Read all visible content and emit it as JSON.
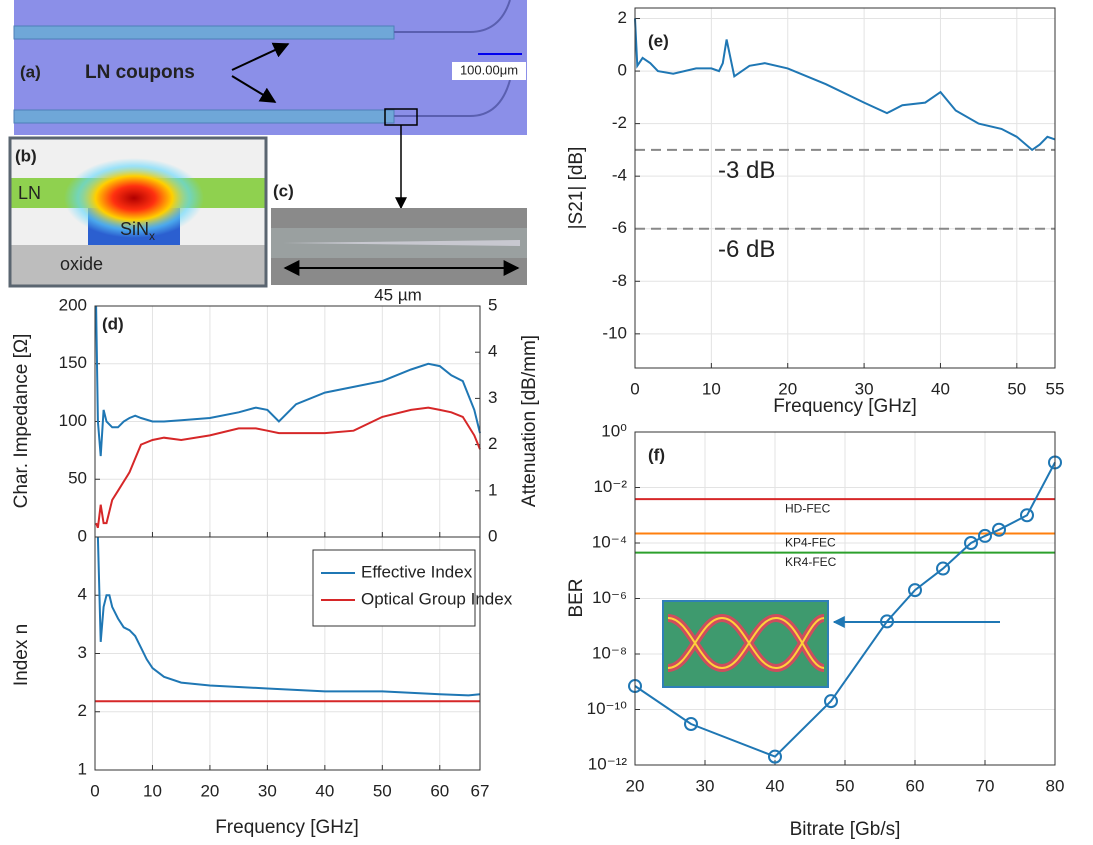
{
  "panels": {
    "a": {
      "label": "(a)",
      "text": "LN coupons",
      "scale_bar": "100.00μm"
    },
    "b": {
      "label": "(b)",
      "top": "LN",
      "core": "SiN",
      "core_sub": "x",
      "bottom": "oxide"
    },
    "c": {
      "label": "(c)",
      "length": "45 µm"
    }
  },
  "chart_data": [
    {
      "type": "line",
      "panel_label": "(d)",
      "ylabel": "Char. Impedance [Ω]",
      "y2label": "Attenuation [dB/mm]",
      "xlim": [
        0,
        67
      ],
      "xticks": [
        0,
        10,
        20,
        30,
        40,
        50,
        60,
        67
      ],
      "xticklabels": false,
      "ylim": [
        0,
        200
      ],
      "yticks": [
        0,
        50,
        100,
        150,
        200
      ],
      "y2lim": [
        0,
        5
      ],
      "y2ticks": [
        0,
        1,
        2,
        3,
        4,
        5
      ],
      "grid": true,
      "series": [
        {
          "color": "#1f77b4",
          "x": [
            0.2,
            0.5,
            1,
            1.5,
            2,
            3,
            4,
            5,
            6,
            7,
            8,
            10,
            12,
            15,
            20,
            25,
            28,
            30,
            32,
            35,
            40,
            45,
            50,
            55,
            58,
            60,
            62,
            64,
            66,
            67
          ],
          "values": [
            200,
            100,
            70,
            110,
            100,
            95,
            95,
            100,
            103,
            105,
            103,
            100,
            100,
            101,
            103,
            108,
            112,
            110,
            100,
            115,
            125,
            130,
            135,
            145,
            150,
            148,
            140,
            135,
            110,
            90
          ]
        },
        {
          "color": "#d62728",
          "axis": "y2",
          "x": [
            0.2,
            0.5,
            1,
            1.5,
            2,
            3,
            4,
            5,
            6,
            7,
            8,
            10,
            12,
            15,
            20,
            25,
            28,
            30,
            32,
            35,
            40,
            45,
            50,
            55,
            58,
            60,
            62,
            64,
            66,
            67
          ],
          "values": [
            0.3,
            0.2,
            0.7,
            0.3,
            0.3,
            0.8,
            1.0,
            1.2,
            1.4,
            1.7,
            2.0,
            2.1,
            2.15,
            2.1,
            2.2,
            2.35,
            2.35,
            2.3,
            2.25,
            2.25,
            2.25,
            2.3,
            2.6,
            2.75,
            2.8,
            2.75,
            2.7,
            2.6,
            2.2,
            1.9
          ]
        }
      ]
    },
    {
      "type": "line",
      "ylabel": "Index n",
      "xlabel": "Frequency [GHz]",
      "xlim": [
        0,
        67
      ],
      "xticks": [
        0,
        10,
        20,
        30,
        40,
        50,
        60,
        67
      ],
      "ylim": [
        1,
        5
      ],
      "yticks": [
        1,
        2,
        3,
        4
      ],
      "grid": true,
      "legend": "top-right",
      "series": [
        {
          "name": "Effective Index",
          "color": "#1f77b4",
          "x": [
            0.5,
            1,
            1.5,
            2,
            2.5,
            3,
            4,
            5,
            6,
            7,
            8,
            9,
            10,
            12,
            15,
            20,
            30,
            40,
            50,
            60,
            65,
            67
          ],
          "values": [
            5,
            3.2,
            3.8,
            4.0,
            4.0,
            3.8,
            3.6,
            3.45,
            3.4,
            3.3,
            3.1,
            2.9,
            2.75,
            2.6,
            2.5,
            2.45,
            2.4,
            2.35,
            2.35,
            2.3,
            2.28,
            2.3
          ]
        },
        {
          "name": "Optical Group Index",
          "color": "#d62728",
          "x": [
            0,
            67
          ],
          "values": [
            2.18,
            2.18
          ]
        }
      ]
    },
    {
      "type": "line",
      "panel_label": "(e)",
      "ylabel": "|S21| [dB]",
      "xlabel": "Frequency [GHz]",
      "xlim": [
        0,
        55
      ],
      "xticks": [
        0,
        10,
        20,
        30,
        40,
        50,
        55
      ],
      "ylim": [
        -11.3,
        2.4
      ],
      "yticks": [
        -10,
        -8,
        -6,
        -4,
        -2,
        0,
        2
      ],
      "grid": true,
      "ref_lines": [
        {
          "value": -3,
          "label": "-3 dB",
          "color": "#888888"
        },
        {
          "value": -6,
          "label": "-6 dB",
          "color": "#888888"
        }
      ],
      "series": [
        {
          "color": "#1f77b4",
          "x": [
            0,
            0.3,
            1,
            2,
            3,
            5,
            8,
            10,
            11,
            11.5,
            12,
            13,
            15,
            17,
            20,
            25,
            30,
            33,
            35,
            38,
            40,
            42,
            45,
            48,
            50,
            52,
            53,
            54,
            55
          ],
          "values": [
            2,
            0.2,
            0.5,
            0.3,
            0,
            -0.1,
            0.1,
            0.1,
            0,
            0.3,
            1.2,
            -0.2,
            0.2,
            0.3,
            0.1,
            -0.5,
            -1.2,
            -1.6,
            -1.3,
            -1.2,
            -0.8,
            -1.5,
            -2.0,
            -2.2,
            -2.5,
            -3.0,
            -2.8,
            -2.5,
            -2.6
          ]
        }
      ]
    },
    {
      "type": "line",
      "panel_label": "(f)",
      "ylabel": "BER",
      "xlabel": "Bitrate [Gb/s]",
      "log_y": true,
      "markers": true,
      "xlim": [
        20,
        80
      ],
      "xticks": [
        20,
        30,
        40,
        50,
        60,
        70,
        80
      ],
      "ylim": [
        1e-12,
        1
      ],
      "yticks": [
        {
          "value": 1e-12,
          "label": "10⁻¹²"
        },
        {
          "value": 1e-10,
          "label": "10⁻¹⁰"
        },
        {
          "value": 1e-08,
          "label": "10⁻⁸"
        },
        {
          "value": 1e-06,
          "label": "10⁻⁶"
        },
        {
          "value": 0.0001,
          "label": "10⁻⁴"
        },
        {
          "value": 0.01,
          "label": "10⁻²"
        },
        {
          "value": 1,
          "label": "10⁰"
        }
      ],
      "grid": true,
      "ref_lines": [
        {
          "value": 0.0038,
          "label": "HD-FEC",
          "color": "#d62728"
        },
        {
          "value": 0.00022,
          "label": "KP4-FEC",
          "color": "#ff7f0e"
        },
        {
          "value": 4.5e-05,
          "label": "KR4-FEC",
          "color": "#2ca02c"
        }
      ],
      "series": [
        {
          "color": "#1f77b4",
          "x": [
            20,
            28,
            40,
            48,
            56,
            60,
            64,
            68,
            70,
            72,
            76,
            80
          ],
          "values": [
            7e-10,
            3e-11,
            2e-12,
            2e-10,
            1.5e-07,
            2e-06,
            1.2e-05,
            0.0001,
            0.00018,
            0.0003,
            0.001,
            0.08
          ]
        }
      ]
    }
  ]
}
